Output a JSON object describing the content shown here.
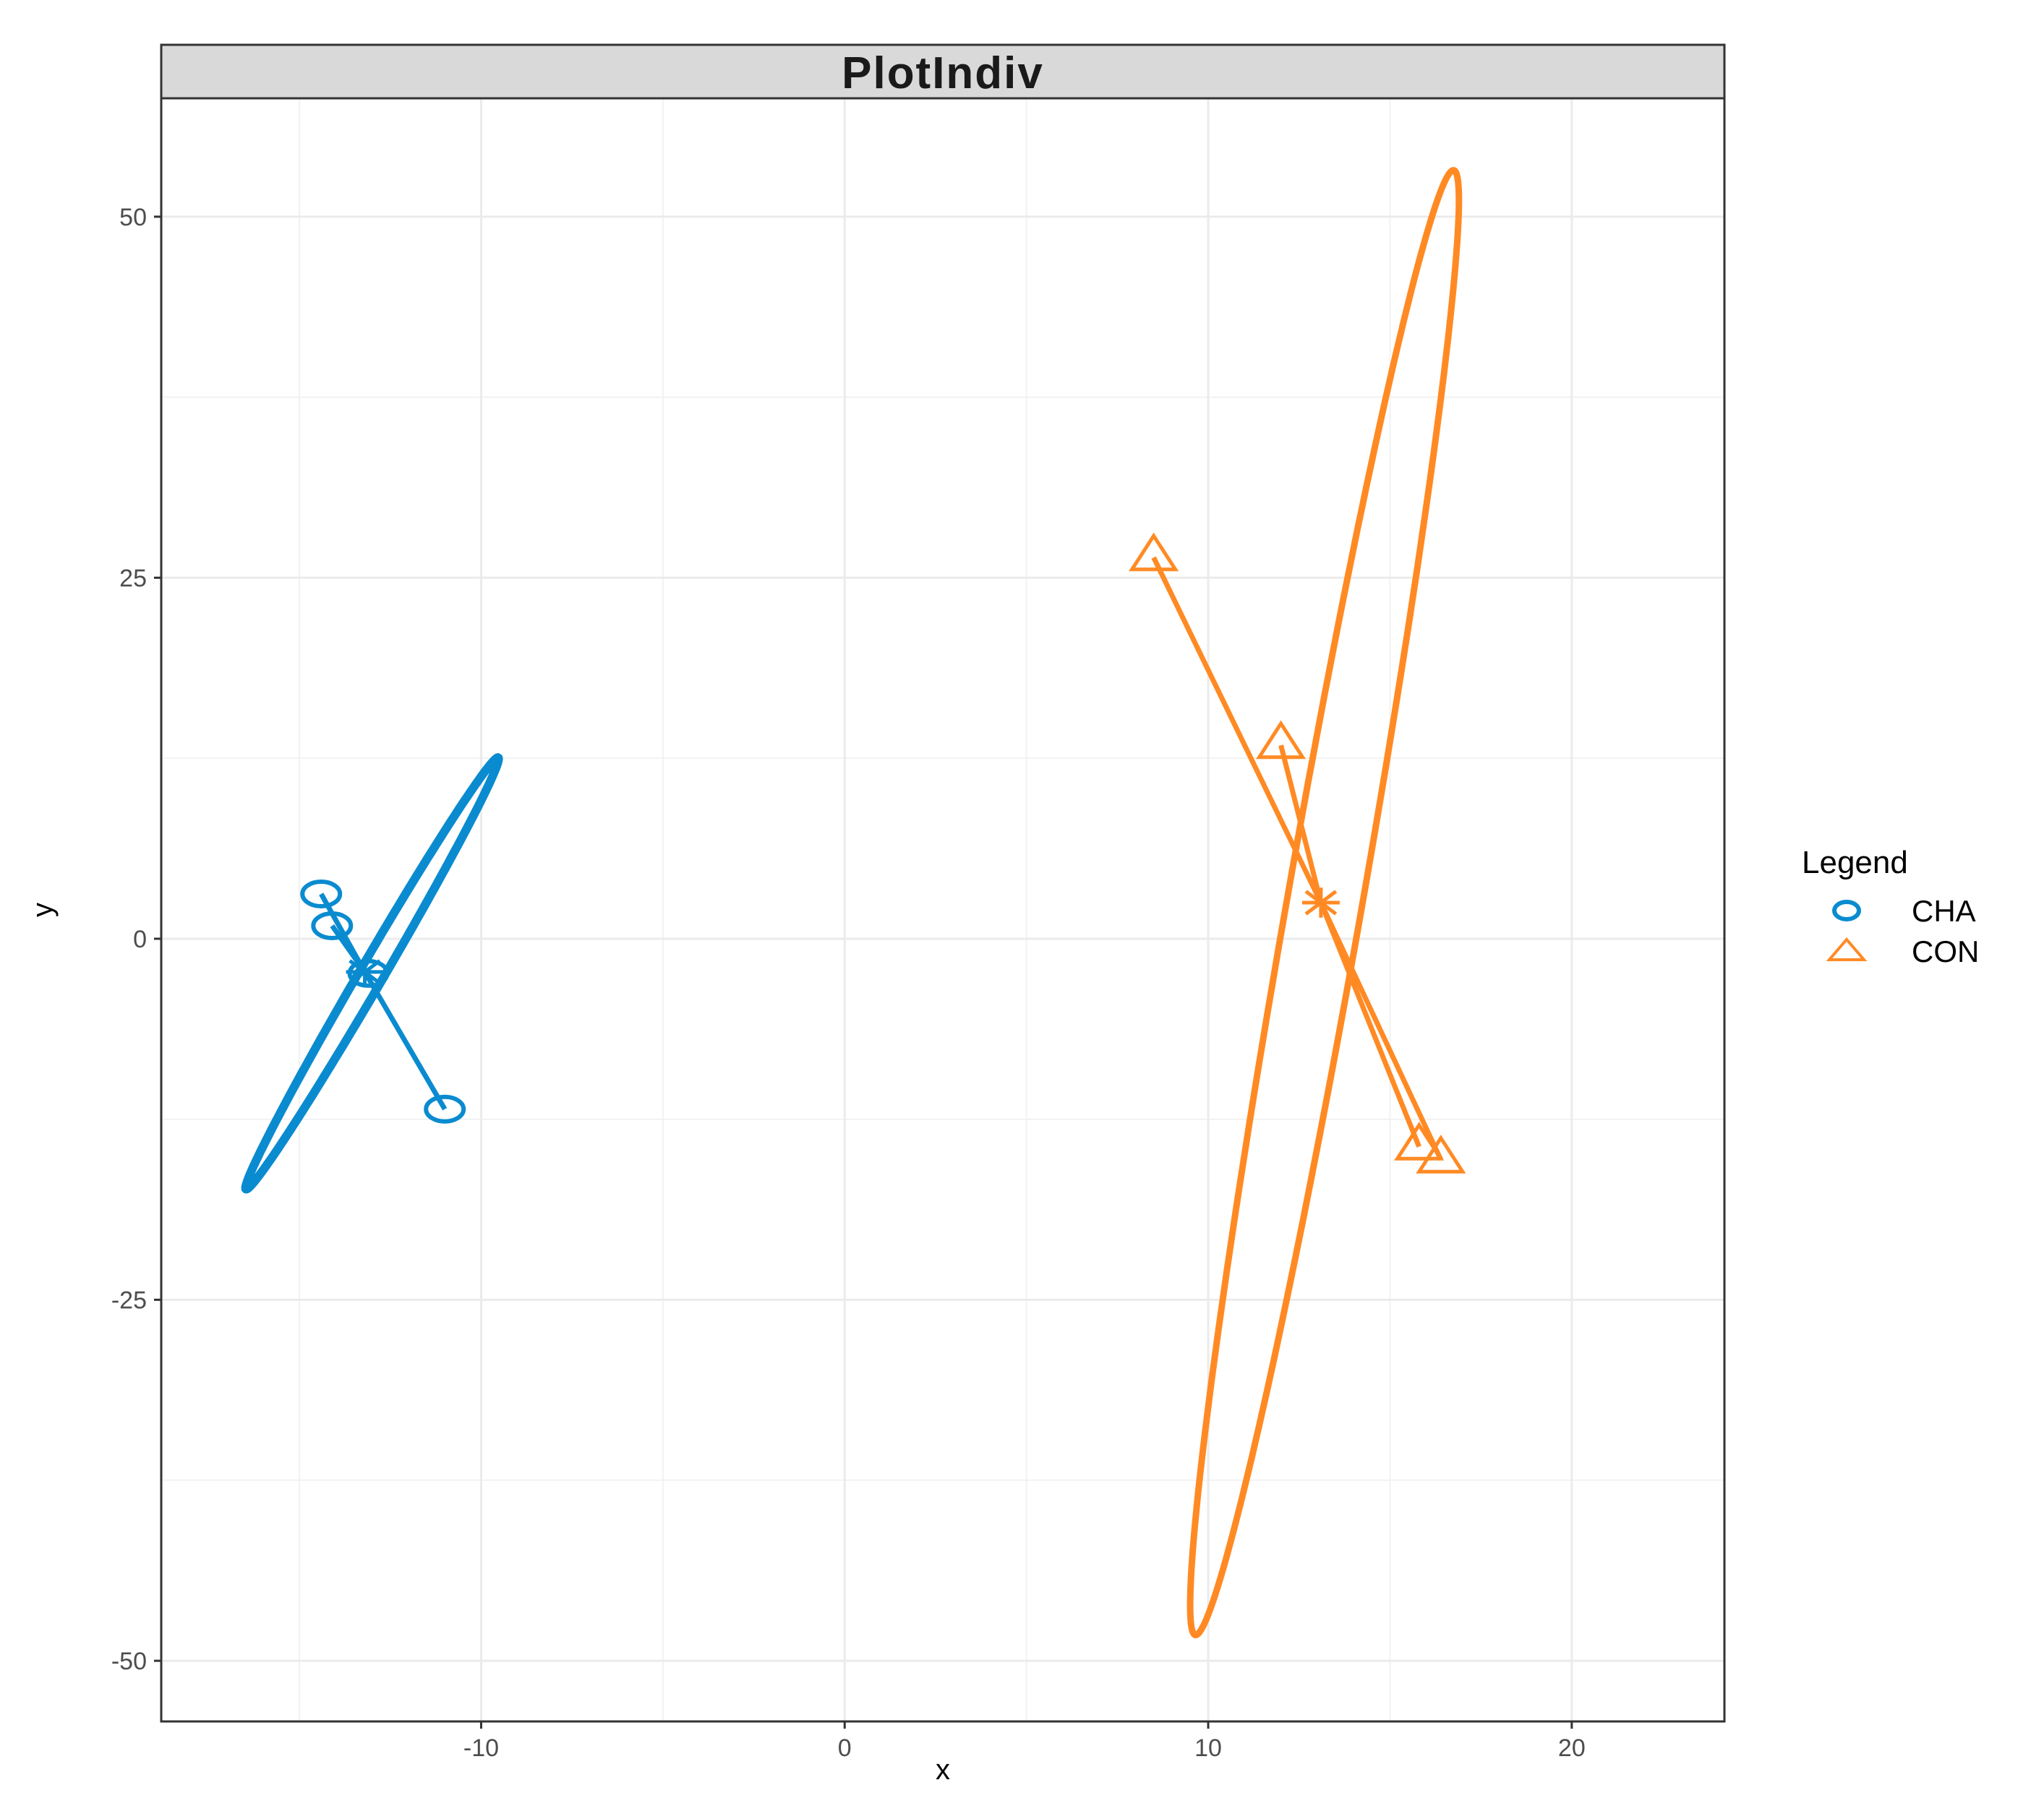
{
  "chart_data": {
    "type": "scatter",
    "title": "PlotIndiv",
    "xlabel": "x",
    "ylabel": "y",
    "xlim": [
      -18.8,
      24.2
    ],
    "ylim": [
      -54.2,
      58.2
    ],
    "x_ticks": [
      -10,
      0,
      10,
      20
    ],
    "x_tick_labels": [
      "-10",
      "0",
      "10",
      "20"
    ],
    "y_ticks": [
      -50,
      -25,
      0,
      25,
      50
    ],
    "y_tick_labels": [
      "-50",
      "-25",
      "0",
      "25",
      "50"
    ],
    "grid": true,
    "legend": {
      "title": "Legend",
      "position": "right",
      "entries": [
        {
          "label": "CHA",
          "shape": "circle",
          "color": "#0a8bd0"
        },
        {
          "label": "CON",
          "shape": "triangle",
          "color": "#ff8a24"
        }
      ]
    },
    "series": [
      {
        "name": "CHA",
        "color": "#0a8bd0",
        "shape": "circle",
        "points": [
          {
            "x": -14.4,
            "y": 3.1
          },
          {
            "x": -14.1,
            "y": 0.9
          },
          {
            "x": -13.1,
            "y": -2.4
          },
          {
            "x": -11.0,
            "y": -11.8
          }
        ],
        "centroid": {
          "x": -13.2,
          "y": -2.3
        },
        "ellipse": {
          "cx": -13.0,
          "cy": -2.4,
          "rx": 17.3,
          "ry": 0.55,
          "angle_deg": -59.7
        }
      },
      {
        "name": "CON",
        "color": "#ff8a24",
        "shape": "triangle",
        "points": [
          {
            "x": 8.5,
            "y": 26.4
          },
          {
            "x": 12.0,
            "y": 13.4
          },
          {
            "x": 15.8,
            "y": -14.4
          },
          {
            "x": 16.4,
            "y": -15.3
          }
        ],
        "centroid": {
          "x": 13.1,
          "y": 2.5
        },
        "ellipse": {
          "cx": 13.2,
          "cy": 2.5,
          "rx": 51.5,
          "ry": 1.73,
          "angle_deg": -80.0
        }
      }
    ]
  }
}
